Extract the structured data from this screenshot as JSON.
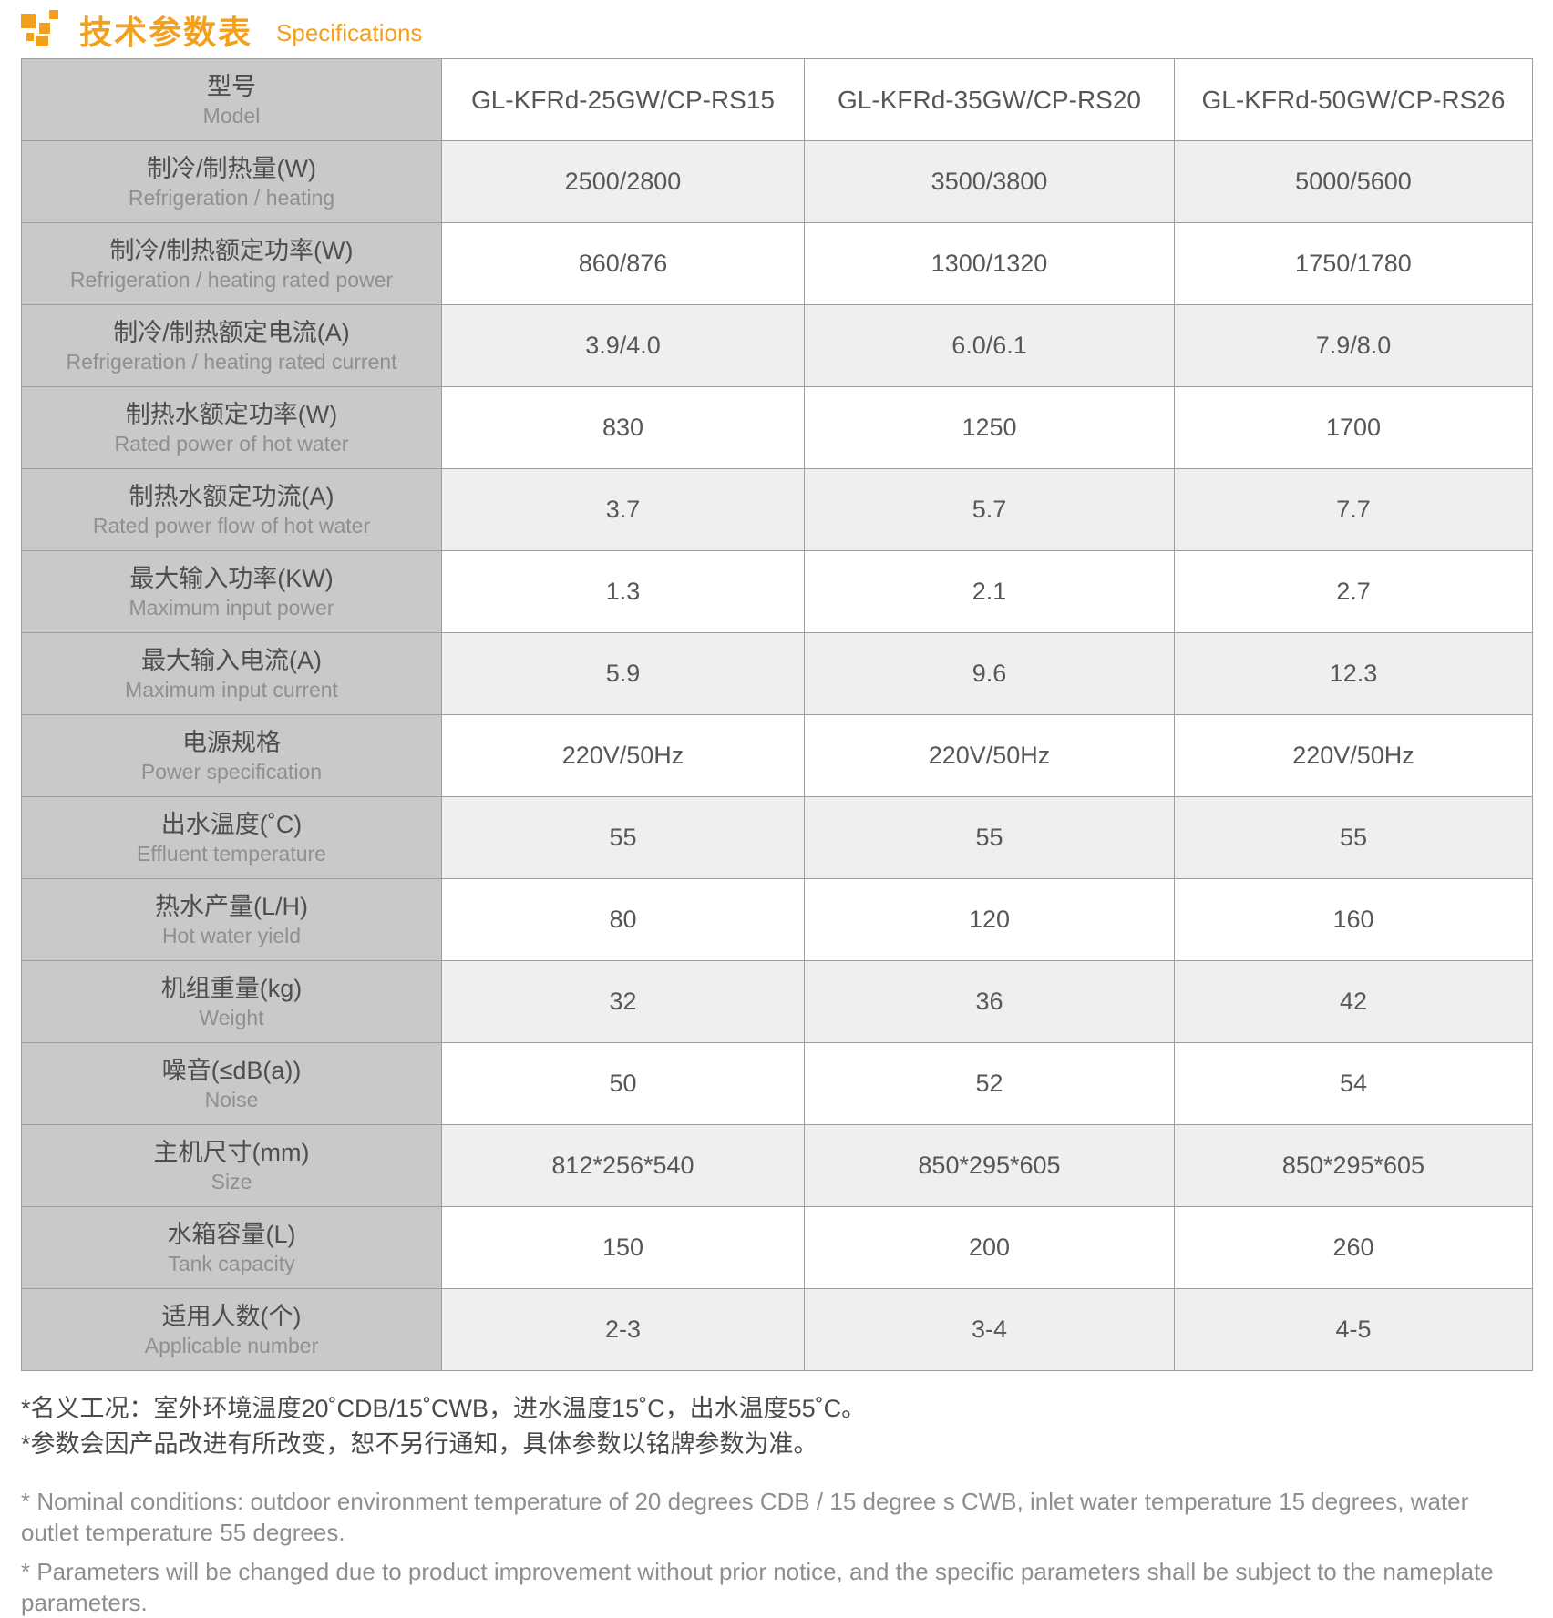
{
  "header": {
    "title_zh": "技术参数表",
    "title_en": "Specifications"
  },
  "table": {
    "model_label_zh": "型号",
    "model_label_en": "Model",
    "models": [
      "GL-KFRd-25GW/CP-RS15",
      "GL-KFRd-35GW/CP-RS20",
      "GL-KFRd-50GW/CP-RS26"
    ],
    "rows": [
      {
        "label_zh": "制冷/制热量(W)",
        "label_en": "Refrigeration / heating",
        "values": [
          "2500/2800",
          "3500/3800",
          "5000/5600"
        ]
      },
      {
        "label_zh": "制冷/制热额定功率(W)",
        "label_en": "Refrigeration / heating rated power",
        "values": [
          "860/876",
          "1300/1320",
          "1750/1780"
        ]
      },
      {
        "label_zh": "制冷/制热额定电流(A)",
        "label_en": "Refrigeration / heating rated current",
        "values": [
          "3.9/4.0",
          "6.0/6.1",
          "7.9/8.0"
        ]
      },
      {
        "label_zh": "制热水额定功率(W)",
        "label_en": "Rated power of hot water",
        "values": [
          "830",
          "1250",
          "1700"
        ]
      },
      {
        "label_zh": "制热水额定功流(A)",
        "label_en": "Rated power flow of hot water",
        "values": [
          "3.7",
          "5.7",
          "7.7"
        ]
      },
      {
        "label_zh": "最大输入功率(KW)",
        "label_en": "Maximum input power",
        "values": [
          "1.3",
          "2.1",
          "2.7"
        ]
      },
      {
        "label_zh": "最大输入电流(A)",
        "label_en": "Maximum input current",
        "values": [
          "5.9",
          "9.6",
          "12.3"
        ]
      },
      {
        "label_zh": "电源规格",
        "label_en": "Power specification",
        "values": [
          "220V/50Hz",
          "220V/50Hz",
          "220V/50Hz"
        ]
      },
      {
        "label_zh": "出水温度(˚C)",
        "label_en": "Effluent temperature",
        "values": [
          "55",
          "55",
          "55"
        ]
      },
      {
        "label_zh": "热水产量(L/H)",
        "label_en": "Hot water yield",
        "values": [
          "80",
          "120",
          "160"
        ]
      },
      {
        "label_zh": "机组重量(kg)",
        "label_en": "Weight",
        "values": [
          "32",
          "36",
          "42"
        ]
      },
      {
        "label_zh": "噪音(≤dB(a))",
        "label_en": "Noise",
        "values": [
          "50",
          "52",
          "54"
        ]
      },
      {
        "label_zh": "主机尺寸(mm)",
        "label_en": "Size",
        "values": [
          "812*256*540",
          "850*295*605",
          "850*295*605"
        ]
      },
      {
        "label_zh": "水箱容量(L)",
        "label_en": "Tank capacity",
        "values": [
          "150",
          "200",
          "260"
        ]
      },
      {
        "label_zh": "适用人数(个)",
        "label_en": "Applicable number",
        "values": [
          "2-3",
          "3-4",
          "4-5"
        ]
      }
    ]
  },
  "footnotes": {
    "zh": [
      "*名义工况：室外环境温度20˚CDB/15˚CWB，进水温度15˚C，出水温度55˚C。",
      "*参数会因产品改进有所改变，恕不另行通知，具体参数以铭牌参数为准。"
    ],
    "en": [
      "* Nominal conditions: outdoor environment temperature of 20 degrees CDB / 15 degree s CWB, inlet water temperature 15 degrees, water outlet temperature  55 degrees.",
      "* Parameters will be changed due to product improvement without prior notice, and the specific parameters shall be subject to the nameplate parameters."
    ]
  },
  "colors": {
    "accent_orange": "#F2A01E",
    "label_column_bg": "#C9C9C9",
    "alt_row_bg": "#EFEFEF",
    "border": "#9E9E9E"
  }
}
